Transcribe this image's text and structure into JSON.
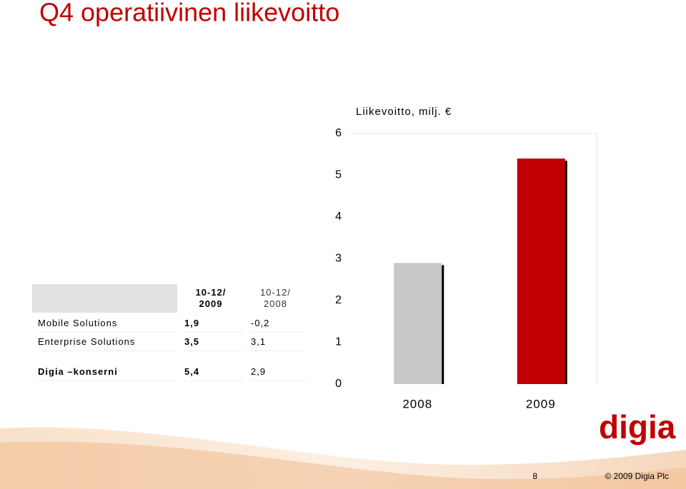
{
  "header": {
    "title": "Q4 operatiivinen liikevoitto"
  },
  "table": {
    "header": [
      "10-12/\n2009",
      "10-12/\n2008"
    ],
    "rows": [
      [
        "Mobile Solutions",
        "1,9",
        "-0,2"
      ],
      [
        "Enterprise Solutions",
        "3,5",
        "3,1"
      ],
      [
        "Digia –konserni",
        "5,4",
        "2,9"
      ]
    ]
  },
  "chart_data": {
    "type": "bar",
    "y_label": "Liikevoitto, milj. €",
    "categories": [
      "2008",
      "2009"
    ],
    "values": [
      2.9,
      5.4
    ],
    "colors": [
      "#c8c8c8",
      "#c00000"
    ],
    "ylim": [
      0,
      6
    ],
    "yticks": [
      0,
      1,
      2,
      3,
      4,
      5,
      6
    ]
  },
  "logo": "digia",
  "footer": {
    "page": "8",
    "copyright": "© 2009 Digia Plc"
  }
}
